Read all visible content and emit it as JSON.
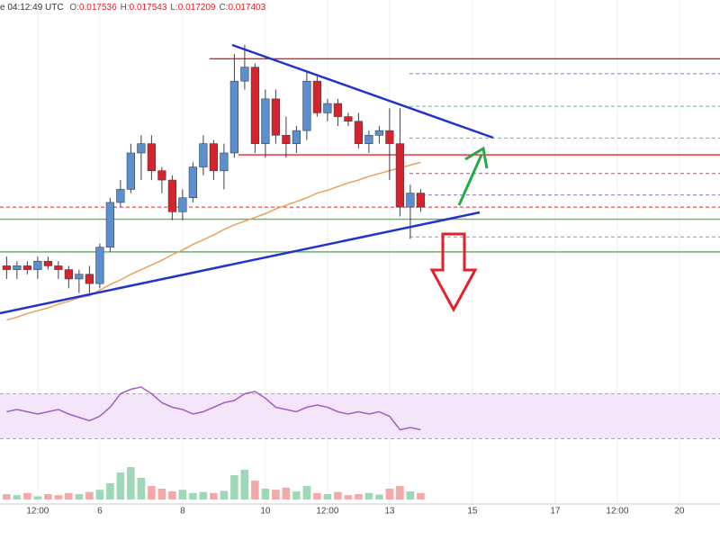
{
  "chart_data": {
    "type": "candlestick",
    "header": {
      "time": "e 04:12:49 UTC",
      "ohlc": [
        {
          "label": "O:",
          "value": "0.017536"
        },
        {
          "label": "H:",
          "value": "0.017543"
        },
        {
          "label": "L:",
          "value": "0.017209"
        },
        {
          "label": "C:",
          "value": "0.017403"
        }
      ]
    },
    "x": [
      3.75,
      4,
      4.25,
      4.5,
      4.75,
      5,
      5.25,
      5.5,
      5.75,
      6,
      6.25,
      6.5,
      6.75,
      7,
      7.25,
      7.5,
      7.75,
      8,
      8.25,
      8.5,
      8.75,
      9,
      9.25,
      9.5,
      9.75,
      10,
      10.25,
      10.5,
      10.75,
      11,
      11.25,
      11.5,
      11.75,
      12,
      12.25,
      12.5,
      12.75,
      13,
      13.25,
      13.5,
      13.75
    ],
    "open": [
      0.01675,
      0.01671,
      0.01675,
      0.01671,
      0.0168,
      0.01675,
      0.01671,
      0.01661,
      0.01666,
      0.01656,
      0.01695,
      0.01743,
      0.01757,
      0.01796,
      0.01806,
      0.01777,
      0.01767,
      0.01733,
      0.01748,
      0.01781,
      0.01806,
      0.01777,
      0.01796,
      0.01873,
      0.01888,
      0.01806,
      0.01854,
      0.01815,
      0.01806,
      0.0182,
      0.01873,
      0.01839,
      0.01849,
      0.01835,
      0.0183,
      0.01806,
      0.01815,
      0.0182,
      0.01806,
      0.01738,
      0.01753
    ],
    "high": [
      0.01685,
      0.0168,
      0.0168,
      0.01685,
      0.01685,
      0.0168,
      0.01675,
      0.01671,
      0.01675,
      0.01699,
      0.01748,
      0.01767,
      0.01806,
      0.01815,
      0.01815,
      0.01781,
      0.01772,
      0.01757,
      0.01786,
      0.01815,
      0.0181,
      0.01806,
      0.01902,
      0.01912,
      0.01892,
      0.01864,
      0.01864,
      0.01835,
      0.01825,
      0.01883,
      0.01878,
      0.01854,
      0.01854,
      0.01839,
      0.01839,
      0.0182,
      0.01825,
      0.01844,
      0.01844,
      0.01762,
      0.01757
    ],
    "low": [
      0.01661,
      0.01661,
      0.01666,
      0.01661,
      0.01671,
      0.01661,
      0.01651,
      0.01646,
      0.01646,
      0.01651,
      0.0169,
      0.01738,
      0.01753,
      0.01767,
      0.01767,
      0.01753,
      0.01724,
      0.01724,
      0.01743,
      0.01772,
      0.01767,
      0.01757,
      0.01791,
      0.01864,
      0.01796,
      0.01791,
      0.01806,
      0.01791,
      0.01796,
      0.0181,
      0.01835,
      0.0183,
      0.01825,
      0.01825,
      0.01801,
      0.01796,
      0.01806,
      0.01767,
      0.01728,
      0.01704,
      0.01733
    ],
    "close": [
      0.01671,
      0.01675,
      0.01671,
      0.0168,
      0.01675,
      0.01671,
      0.01661,
      0.01666,
      0.01656,
      0.01695,
      0.01743,
      0.01757,
      0.01796,
      0.01806,
      0.01777,
      0.01767,
      0.01733,
      0.01748,
      0.01781,
      0.01806,
      0.01777,
      0.01796,
      0.01873,
      0.01888,
      0.01806,
      0.01854,
      0.01815,
      0.01806,
      0.0182,
      0.01873,
      0.01839,
      0.01849,
      0.01835,
      0.0183,
      0.01806,
      0.01815,
      0.0182,
      0.01806,
      0.01738,
      0.01753,
      0.01738
    ],
    "up_color": "#5b8fd0",
    "down_color": "#d8232c",
    "ma": {
      "color": "#e8a15a",
      "values": [
        0.01617,
        0.0162,
        0.01624,
        0.01627,
        0.0163,
        0.01634,
        0.01637,
        0.01641,
        0.01643,
        0.01649,
        0.01655,
        0.0166,
        0.01666,
        0.01671,
        0.01676,
        0.01681,
        0.01687,
        0.01692,
        0.01698,
        0.01703,
        0.01708,
        0.01714,
        0.01719,
        0.01723,
        0.01727,
        0.01731,
        0.01736,
        0.0174,
        0.01744,
        0.01748,
        0.01753,
        0.01756,
        0.0176,
        0.01764,
        0.01767,
        0.01771,
        0.01774,
        0.01777,
        0.0178,
        0.01783,
        0.01786
      ]
    },
    "levels": [
      {
        "value": 0.01897,
        "from": 8.65,
        "color": "#e8202a",
        "dash": false
      },
      {
        "value": 0.01794,
        "from": 9.35,
        "color": "#e8202a",
        "dash": false
      },
      {
        "value": 0.01725,
        "from": 3.59,
        "color": "#5cb85c",
        "dash": false
      },
      {
        "value": 0.0169,
        "from": 3.59,
        "color": "#5cb85c",
        "dash": false
      },
      {
        "value": 0.01738,
        "from": 3.59,
        "color": "#e8202a",
        "dash": true
      },
      {
        "value": 0.01881,
        "from": 13.48,
        "color": "#9b6fc0",
        "dash": true
      },
      {
        "value": 0.01846,
        "from": 13.48,
        "color": "#5fb3b3",
        "dash": true
      },
      {
        "value": 0.01812,
        "from": 13.48,
        "color": "#5fb3b3",
        "dash": true
      },
      {
        "value": 0.01774,
        "from": 13.48,
        "color": "#9b5f7a",
        "dash": true
      },
      {
        "value": 0.01751,
        "from": 13.48,
        "color": "#9b6fc0",
        "dash": true
      },
      {
        "value": 0.01706,
        "from": 13.48,
        "color": "#999999",
        "dash": true
      }
    ],
    "xlim": [
      3.59,
      20.98
    ],
    "ylim": [
      0.0155,
      0.0196
    ],
    "xticks": [
      {
        "value": 4.5,
        "label": "12:00"
      },
      6,
      8,
      10,
      {
        "value": 11.5,
        "label": "12:00"
      },
      13,
      15,
      17,
      {
        "value": 18.5,
        "label": "12:00"
      },
      20
    ],
    "grid": true,
    "rsi": {
      "color": "#a35fc4",
      "ylim": [
        20,
        80
      ],
      "bands": [
        30,
        70
      ],
      "values": [
        54,
        56,
        54,
        52,
        54,
        56,
        52,
        49,
        46,
        50,
        58,
        70,
        74,
        76,
        70,
        62,
        58,
        56,
        52,
        54,
        58,
        62,
        64,
        70,
        72,
        66,
        58,
        56,
        54,
        58,
        60,
        58,
        54,
        52,
        54,
        52,
        54,
        50,
        38,
        40,
        38
      ]
    },
    "volume": {
      "ylim": [
        0,
        100
      ],
      "up_color": "#9fd8b8",
      "down_color": "#f4a9a9",
      "values": [
        10,
        8,
        12,
        6,
        10,
        8,
        12,
        10,
        14,
        18,
        30,
        50,
        60,
        40,
        25,
        20,
        15,
        18,
        12,
        14,
        12,
        16,
        45,
        55,
        35,
        20,
        18,
        22,
        15,
        25,
        12,
        10,
        14,
        8,
        10,
        12,
        9,
        20,
        25,
        15,
        12
      ]
    }
  }
}
